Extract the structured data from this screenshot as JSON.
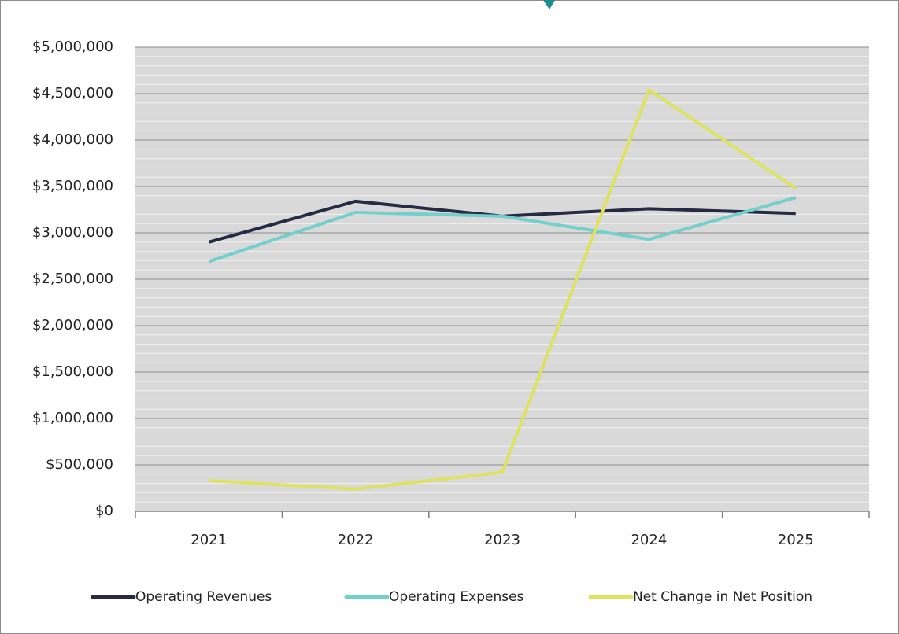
{
  "chart_data": {
    "type": "line",
    "categories": [
      "2021",
      "2022",
      "2023",
      "2024",
      "2025"
    ],
    "series": [
      {
        "name": "Operating Revenues",
        "color": "#262a45",
        "values": [
          2900000,
          3340000,
          3180000,
          3260000,
          3210000
        ]
      },
      {
        "name": "Operating Expenses",
        "color": "#72cfcc",
        "values": [
          2690000,
          3220000,
          3180000,
          2930000,
          3380000
        ]
      },
      {
        "name": "Net Change in Net Position",
        "color": "#dde260",
        "values": [
          330000,
          240000,
          420000,
          4540000,
          3480000
        ]
      }
    ],
    "ylim": [
      0,
      5000000
    ],
    "yticks": [
      {
        "value": 0,
        "label": "$0"
      },
      {
        "value": 500000,
        "label": "$500,000"
      },
      {
        "value": 1000000,
        "label": "$1,000,000"
      },
      {
        "value": 1500000,
        "label": "$1,500,000"
      },
      {
        "value": 2000000,
        "label": "$2,000,000"
      },
      {
        "value": 2500000,
        "label": "$2,500,000"
      },
      {
        "value": 3000000,
        "label": "$3,000,000"
      },
      {
        "value": 3500000,
        "label": "$3,500,000"
      },
      {
        "value": 4000000,
        "label": "$4,000,000"
      },
      {
        "value": 4500000,
        "label": "$4,500,000"
      },
      {
        "value": 5000000,
        "label": "$5,000,000"
      }
    ],
    "grid": true,
    "minor_grid_divisions": 5,
    "legend": "bottom"
  }
}
